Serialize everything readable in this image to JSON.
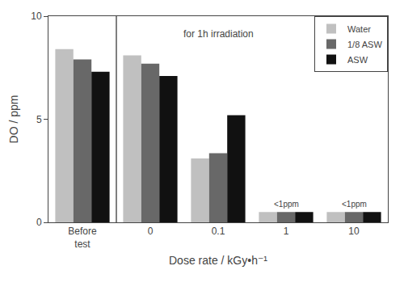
{
  "chart_data": {
    "type": "bar",
    "categories": [
      "Before\ntest",
      "0",
      "0.1",
      "1",
      "10"
    ],
    "series": [
      {
        "name": "Water",
        "color": "#c0c0c0",
        "values": [
          8.4,
          8.1,
          3.1,
          0.5,
          0.5
        ]
      },
      {
        "name": "1/8 ASW",
        "color": "#686868",
        "values": [
          7.9,
          7.7,
          3.35,
          0.5,
          0.5
        ]
      },
      {
        "name": "ASW",
        "color": "#111111",
        "values": [
          7.3,
          7.1,
          5.2,
          0.5,
          0.5
        ]
      }
    ],
    "xlabel": "Dose rate / kGy•h⁻¹",
    "ylabel": "DO / ppm",
    "ylim": [
      0,
      10
    ],
    "yticks": [
      0,
      5,
      10
    ],
    "grid": false,
    "legend": "upper right",
    "annotations": [
      {
        "text": "<1ppm",
        "category": "1",
        "y": 0.6
      },
      {
        "text": "<1ppm",
        "category": "10",
        "y": 0.6
      },
      {
        "text": "for 1h irradiation",
        "category": "0.1",
        "y": 9.5
      }
    ]
  }
}
